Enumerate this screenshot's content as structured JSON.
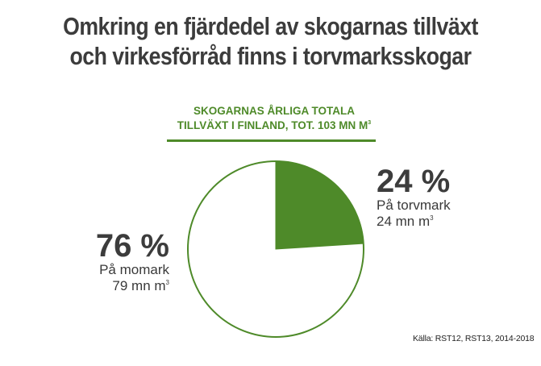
{
  "title": {
    "line1": "Omkring en fjärdedel av skogarnas tillväxt",
    "line2": "och virkesförråd finns i torvmarksskogar"
  },
  "subtitle": {
    "line1": "SKOGARNAS ÅRLIGA TOTALA",
    "line2": "TILLVÄXT I FINLAND, TOT. 103 MN M",
    "line2_sup": "3"
  },
  "slices": {
    "torvmark": {
      "percent_label": "24 %",
      "name": "På torvmark",
      "volume": "24 mn m",
      "unit_sup": "3"
    },
    "momark": {
      "percent_label": "76 %",
      "name": "På momark",
      "volume": "79 mn m",
      "unit_sup": "3"
    }
  },
  "source": "Källa: RST12, RST13, 2014-2018",
  "colors": {
    "accent_green": "#4e8a29",
    "text_dark": "#3c3c3c",
    "background": "#ffffff"
  },
  "chart_data": {
    "type": "pie",
    "title": "Omkring en fjärdedel av skogarnas tillväxt och virkesförråd finns i torvmarksskogar",
    "subtitle": "Skogarnas årliga totala tillväxt i Finland, tot. 103 mn m³",
    "categories": [
      "På torvmark",
      "På momark"
    ],
    "values": [
      24,
      76
    ],
    "absolute_values_mn_m3": [
      24,
      79
    ],
    "unit": "%",
    "colors": [
      "#4e8a29",
      "#ffffff"
    ],
    "start_angle_deg": 0,
    "direction": "clockwise",
    "source": "Källa: RST12, RST13, 2014-2018"
  }
}
